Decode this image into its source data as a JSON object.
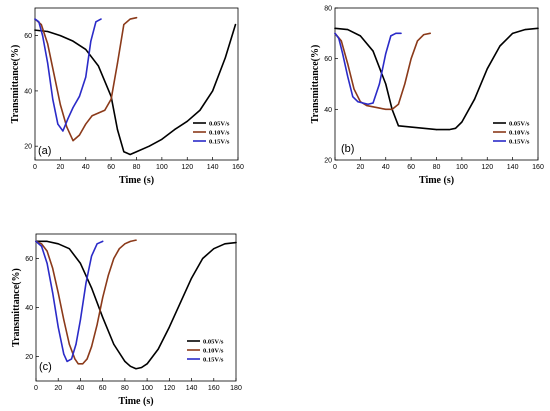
{
  "chart_data": [
    {
      "type": "line",
      "panel_label": "(a)",
      "xlabel": "Time (s)",
      "ylabel": "Transmittance(%)",
      "xlim": [
        0,
        160
      ],
      "ylim": [
        15,
        70
      ],
      "xticks": [
        0,
        20,
        40,
        60,
        80,
        100,
        120,
        140,
        160
      ],
      "yticks": [
        20,
        40,
        60
      ],
      "legend_position": "right",
      "series": [
        {
          "name": "0.05V/s",
          "color": "#000000",
          "x": [
            0,
            10,
            20,
            30,
            40,
            50,
            60,
            65,
            70,
            75,
            80,
            90,
            100,
            110,
            120,
            130,
            140,
            150,
            158
          ],
          "y": [
            62,
            61.5,
            60,
            58,
            55,
            49,
            38,
            26,
            18,
            17,
            18,
            20,
            22.5,
            26,
            29,
            33,
            40,
            52,
            64
          ]
        },
        {
          "name": "0.10V/s",
          "color": "#8b3a1a",
          "x": [
            0,
            5,
            10,
            15,
            20,
            25,
            30,
            35,
            40,
            45,
            50,
            55,
            60,
            65,
            70,
            75,
            80
          ],
          "y": [
            66,
            64,
            57,
            46,
            35,
            27,
            22,
            24,
            28,
            31,
            32,
            33,
            37,
            50,
            64,
            66,
            66.5
          ]
        },
        {
          "name": "0.15V/s",
          "color": "#2b2bc8",
          "x": [
            0,
            3,
            6,
            10,
            14,
            18,
            22,
            26,
            30,
            35,
            40,
            44,
            48,
            52
          ],
          "y": [
            66,
            65,
            60,
            50,
            37,
            28,
            25.5,
            30,
            34,
            38,
            45,
            58,
            65,
            66
          ]
        }
      ]
    },
    {
      "type": "line",
      "panel_label": "(b)",
      "xlabel": "Time (s)",
      "ylabel": "Transmittance(%)",
      "xlim": [
        0,
        160
      ],
      "ylim": [
        20,
        80
      ],
      "xticks": [
        0,
        20,
        40,
        60,
        80,
        100,
        120,
        140,
        160
      ],
      "yticks": [
        20,
        40,
        60,
        80
      ],
      "legend_position": "right",
      "series": [
        {
          "name": "0.05V/s",
          "color": "#000000",
          "x": [
            0,
            10,
            20,
            30,
            40,
            45,
            50,
            60,
            70,
            80,
            90,
            95,
            100,
            110,
            120,
            130,
            140,
            150,
            160
          ],
          "y": [
            72,
            71.5,
            69,
            63,
            50,
            40,
            33.5,
            33,
            32.5,
            32,
            32,
            32.5,
            35,
            44,
            56,
            65,
            70,
            71.5,
            72
          ]
        },
        {
          "name": "0.10V/s",
          "color": "#8b3a1a",
          "x": [
            0,
            5,
            10,
            15,
            20,
            25,
            30,
            35,
            40,
            45,
            50,
            55,
            60,
            65,
            70,
            75
          ],
          "y": [
            70,
            67,
            58,
            48,
            43,
            41.5,
            41,
            40.5,
            40,
            40,
            42,
            50,
            60,
            67,
            69.5,
            70
          ]
        },
        {
          "name": "0.15V/s",
          "color": "#2b2bc8",
          "x": [
            0,
            3,
            6,
            10,
            14,
            18,
            22,
            26,
            30,
            35,
            40,
            44,
            48,
            52
          ],
          "y": [
            70,
            68,
            62,
            53,
            45,
            43,
            42.5,
            42,
            42.5,
            50,
            62,
            69,
            70,
            70
          ]
        }
      ]
    },
    {
      "type": "line",
      "panel_label": "(c)",
      "xlabel": "Time (s)",
      "ylabel": "Transmittance(%)",
      "xlim": [
        0,
        180
      ],
      "ylim": [
        10,
        70
      ],
      "xticks": [
        0,
        20,
        40,
        60,
        80,
        100,
        120,
        140,
        160,
        180
      ],
      "yticks": [
        20,
        40,
        60
      ],
      "legend_position": "right",
      "series": [
        {
          "name": "0.05V/s",
          "color": "#000000",
          "x": [
            0,
            10,
            20,
            30,
            40,
            50,
            60,
            70,
            80,
            85,
            90,
            95,
            100,
            110,
            120,
            130,
            140,
            150,
            160,
            170,
            180
          ],
          "y": [
            67,
            67,
            66,
            64,
            58,
            48,
            36,
            25,
            18,
            16,
            15,
            15.5,
            17,
            23,
            32,
            42,
            52,
            60,
            64,
            66,
            66.5
          ]
        },
        {
          "name": "0.10V/s",
          "color": "#8b3a1a",
          "x": [
            0,
            5,
            10,
            15,
            20,
            25,
            30,
            35,
            38,
            42,
            46,
            50,
            55,
            60,
            65,
            70,
            75,
            80,
            85,
            90
          ],
          "y": [
            67,
            66,
            63,
            56,
            46,
            35,
            25,
            19,
            17,
            17,
            19,
            24,
            33,
            44,
            53,
            60,
            64,
            66,
            67,
            67.5
          ]
        },
        {
          "name": "0.15V/s",
          "color": "#2b2bc8",
          "x": [
            0,
            5,
            10,
            15,
            20,
            25,
            28,
            32,
            36,
            40,
            45,
            50,
            55,
            60
          ],
          "y": [
            67,
            65,
            58,
            46,
            32,
            21,
            18,
            19,
            25,
            35,
            50,
            61,
            66,
            67
          ]
        }
      ]
    }
  ]
}
